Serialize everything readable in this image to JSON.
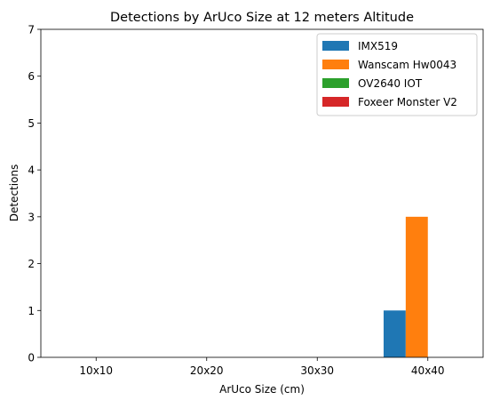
{
  "chart_data": {
    "type": "bar",
    "title": "Detections by ArUco Size at 12 meters Altitude",
    "xlabel": "ArUco Size (cm)",
    "ylabel": "Detections",
    "categories": [
      "10x10",
      "20x20",
      "30x30",
      "40x40"
    ],
    "ylim": [
      0,
      7
    ],
    "yticks": [
      0,
      1,
      2,
      3,
      4,
      5,
      6,
      7
    ],
    "grid": false,
    "legend_position": "top-right",
    "series": [
      {
        "name": "IMX519",
        "color": "#1f77b4",
        "values": [
          0,
          0,
          0,
          1
        ]
      },
      {
        "name": "Wanscam Hw0043",
        "color": "#ff7f0e",
        "values": [
          0,
          0,
          0,
          3
        ]
      },
      {
        "name": "OV2640 IOT",
        "color": "#2ca02c",
        "values": [
          0,
          0,
          0,
          0
        ]
      },
      {
        "name": "Foxeer Monster V2",
        "color": "#d62728",
        "values": [
          0,
          0,
          0,
          0
        ]
      }
    ]
  }
}
